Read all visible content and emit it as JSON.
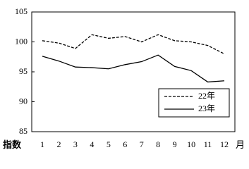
{
  "chart_data": {
    "type": "line",
    "y_label": "指数",
    "x_label": "月",
    "categories": [
      "1",
      "2",
      "3",
      "4",
      "5",
      "6",
      "7",
      "8",
      "9",
      "10",
      "11",
      "12"
    ],
    "series": [
      {
        "name": "22年",
        "color": "#000000",
        "style": "dashed",
        "values": [
          100.2,
          99.8,
          98.9,
          101.2,
          100.6,
          100.9,
          100.0,
          101.2,
          100.2,
          100.0,
          99.4,
          98.0
        ]
      },
      {
        "name": "23年",
        "color": "#000000",
        "style": "solid",
        "values": [
          97.6,
          96.8,
          95.8,
          95.7,
          95.5,
          96.2,
          96.7,
          97.8,
          95.9,
          95.2,
          93.3,
          93.5
        ]
      }
    ],
    "ylim": [
      85,
      105
    ],
    "yticks": [
      85,
      90,
      95,
      100,
      105
    ],
    "grid": false,
    "legend": "lower right"
  }
}
